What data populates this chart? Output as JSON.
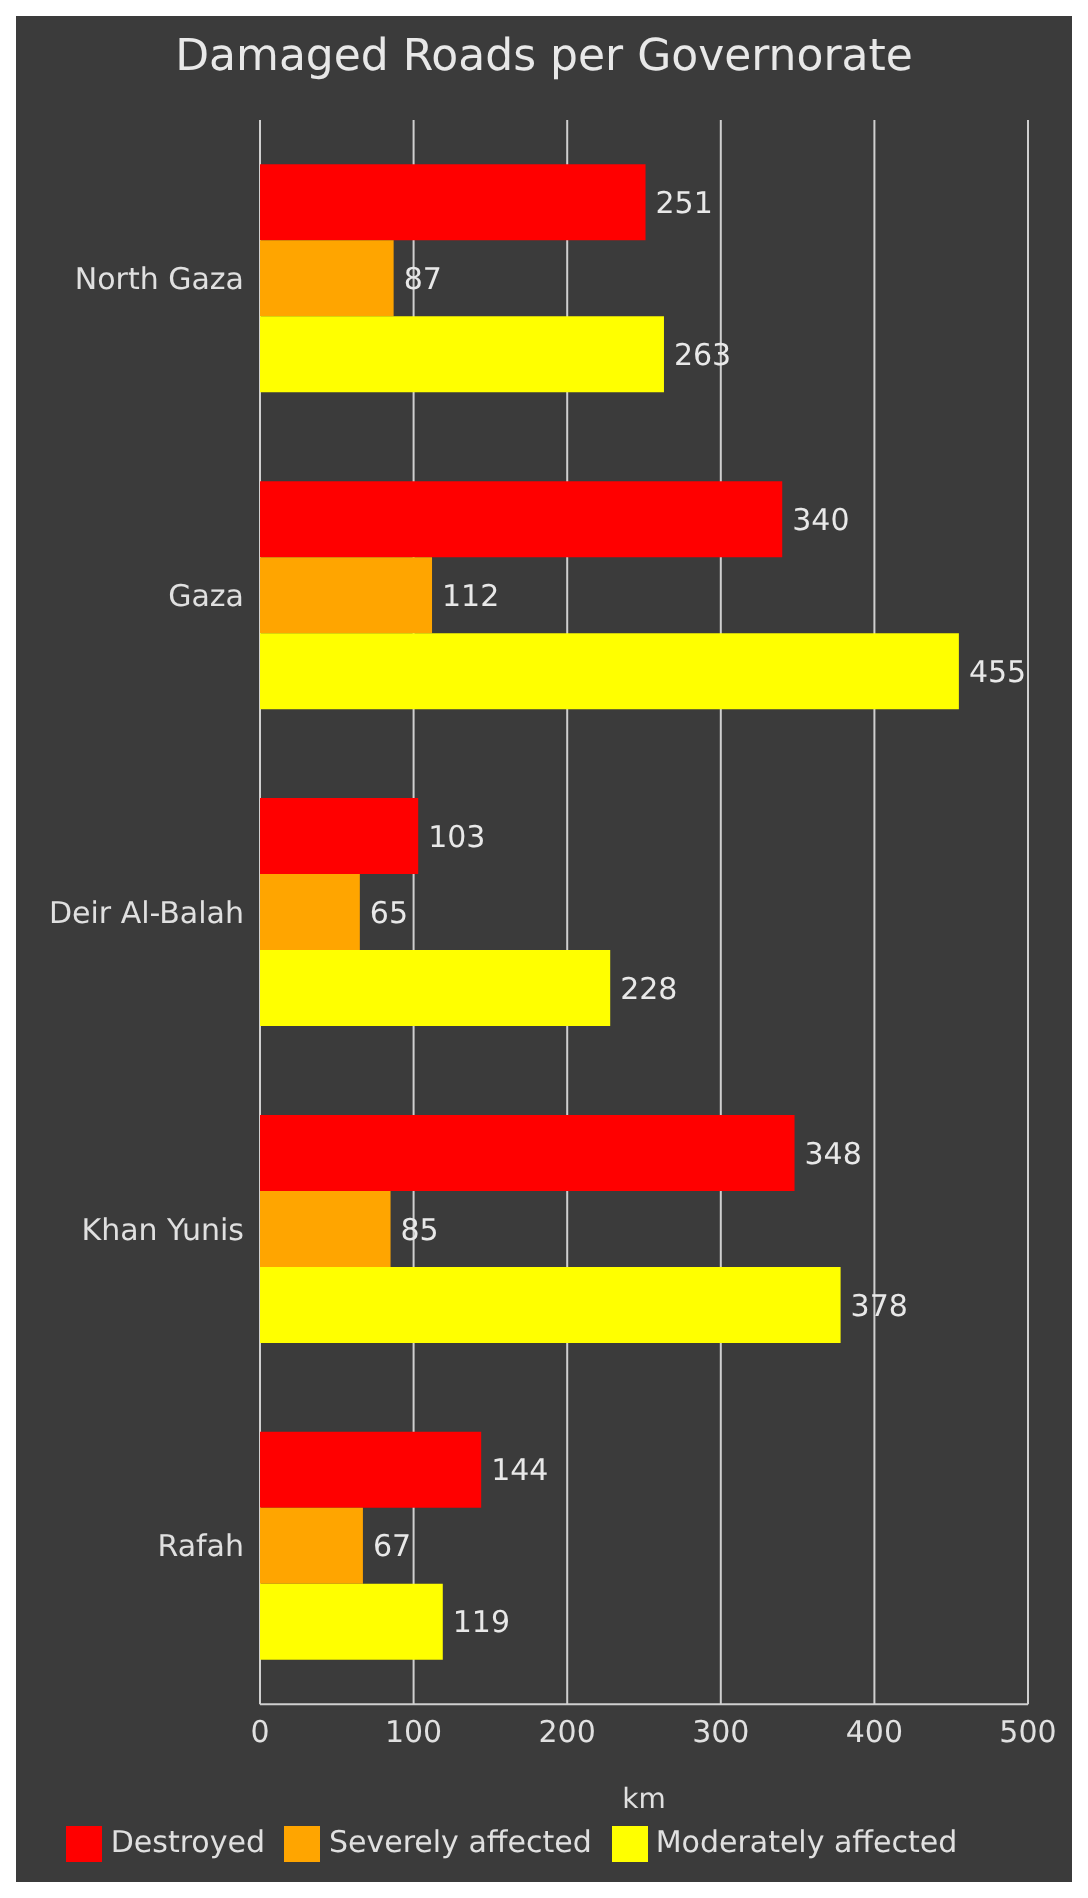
{
  "chart_data": {
    "type": "bar",
    "orientation": "horizontal",
    "title": "Damaged Roads per Governorate",
    "xlabel": "km",
    "categories": [
      "North Gaza",
      "Gaza",
      "Deir Al-Balah",
      "Khan Yunis",
      "Rafah"
    ],
    "series": [
      {
        "name": "Destroyed",
        "color": "#ff0000",
        "values": [
          251,
          340,
          103,
          348,
          144
        ]
      },
      {
        "name": "Severely affected",
        "color": "#ffa500",
        "values": [
          87,
          112,
          65,
          85,
          67
        ]
      },
      {
        "name": "Moderately affected",
        "color": "#ffff00",
        "values": [
          263,
          455,
          228,
          378,
          119
        ]
      }
    ],
    "xlim": [
      0,
      500
    ],
    "xticks": [
      0,
      100,
      200,
      300,
      400,
      500
    ],
    "grid": "x",
    "legend": "bottom",
    "data_labels": true
  }
}
